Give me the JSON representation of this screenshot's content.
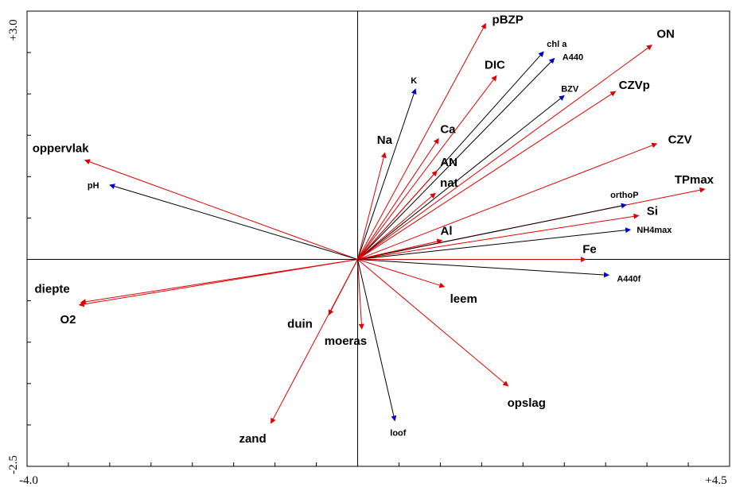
{
  "chart_data": {
    "type": "biplot",
    "title": "",
    "xlabel": "",
    "ylabel": "",
    "xlim": [
      -4.0,
      4.5
    ],
    "ylim": [
      -2.5,
      3.0
    ],
    "x_tick_labels": {
      "min": "-4.0",
      "max": "+4.5"
    },
    "y_tick_labels": {
      "min": "-2.5",
      "max": "+3.0"
    },
    "colors": {
      "red": "#e00000",
      "blue": "#0000cc",
      "black": "#000000"
    },
    "vectors": [
      {
        "name": "pBZP",
        "x": 1.55,
        "y": 2.85,
        "style": "red",
        "label": "pBZP"
      },
      {
        "name": "chla",
        "x": 2.25,
        "y": 2.51,
        "style": "blue",
        "label": "chl a"
      },
      {
        "name": "A440",
        "x": 2.38,
        "y": 2.43,
        "style": "blue",
        "label": "A440"
      },
      {
        "name": "DIC",
        "x": 1.68,
        "y": 2.22,
        "style": "red",
        "label": "DIC"
      },
      {
        "name": "ON",
        "x": 3.56,
        "y": 2.59,
        "style": "red",
        "label": "ON"
      },
      {
        "name": "K",
        "x": 0.7,
        "y": 2.06,
        "style": "blue",
        "label": "K"
      },
      {
        "name": "BZV",
        "x": 2.5,
        "y": 1.98,
        "style": "blue",
        "label": "BZV"
      },
      {
        "name": "CZVp",
        "x": 3.12,
        "y": 2.03,
        "style": "red",
        "label": "CZVp"
      },
      {
        "name": "Ca",
        "x": 0.98,
        "y": 1.46,
        "style": "red",
        "label": "Ca"
      },
      {
        "name": "Na",
        "x": 0.33,
        "y": 1.29,
        "style": "red",
        "label": "Na"
      },
      {
        "name": "CZV",
        "x": 3.62,
        "y": 1.4,
        "style": "red",
        "label": "CZV"
      },
      {
        "name": "oppervlak",
        "x": -3.3,
        "y": 1.2,
        "style": "red",
        "label": "oppervlak"
      },
      {
        "name": "AN",
        "x": 0.96,
        "y": 1.07,
        "style": "red",
        "label": "AN"
      },
      {
        "name": "TPmax",
        "x": 4.2,
        "y": 0.85,
        "style": "red",
        "label": "TPmax"
      },
      {
        "name": "pH",
        "x": -3.0,
        "y": 0.9,
        "style": "blue",
        "label": "pH"
      },
      {
        "name": "nat",
        "x": 0.94,
        "y": 0.8,
        "style": "red",
        "label": "nat"
      },
      {
        "name": "orthoP",
        "x": 3.25,
        "y": 0.66,
        "style": "blue",
        "label": "orthoP"
      },
      {
        "name": "Si",
        "x": 3.4,
        "y": 0.53,
        "style": "red",
        "label": "Si"
      },
      {
        "name": "NH4max",
        "x": 3.3,
        "y": 0.36,
        "style": "blue",
        "label": "NH4max"
      },
      {
        "name": "Al",
        "x": 1.02,
        "y": 0.23,
        "style": "red",
        "label": "Al"
      },
      {
        "name": "Fe",
        "x": 2.76,
        "y": 0.0,
        "style": "red",
        "label": "Fe"
      },
      {
        "name": "A440f",
        "x": 3.04,
        "y": -0.19,
        "style": "blue",
        "label": "A440f"
      },
      {
        "name": "leem",
        "x": 1.05,
        "y": -0.33,
        "style": "red",
        "label": "leem"
      },
      {
        "name": "diepte",
        "x": -3.35,
        "y": -0.52,
        "style": "red",
        "label": "diepte"
      },
      {
        "name": "O2",
        "x": -3.37,
        "y": -0.55,
        "style": "red",
        "label": "O2"
      },
      {
        "name": "duin",
        "x": -0.35,
        "y": -0.67,
        "style": "red",
        "label": "duin"
      },
      {
        "name": "moeras",
        "x": 0.05,
        "y": -0.84,
        "style": "red",
        "label": "moeras"
      },
      {
        "name": "opslag",
        "x": 1.82,
        "y": -1.53,
        "style": "red",
        "label": "opslag"
      },
      {
        "name": "zand",
        "x": -1.05,
        "y": -1.98,
        "style": "red",
        "label": "zand"
      },
      {
        "name": "loof",
        "x": 0.45,
        "y": -1.95,
        "style": "blue",
        "label": "loof"
      }
    ]
  }
}
